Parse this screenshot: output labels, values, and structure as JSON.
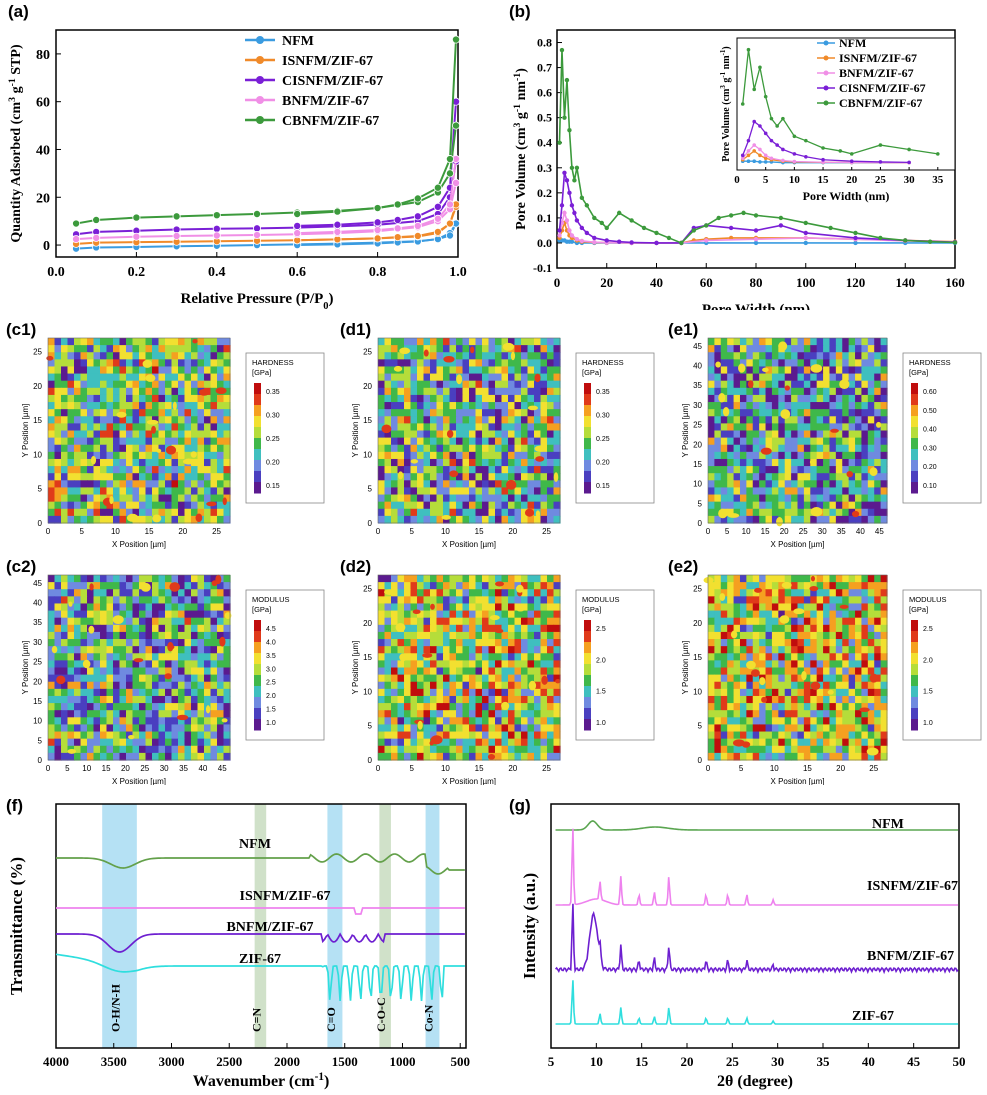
{
  "colors": {
    "NFM": "#3a9be0",
    "ISNFM": "#f08a2a",
    "CISNFM": "#7a1fd6",
    "BNFM": "#f08fe6",
    "CBNFM": "#3c9a3c",
    "ZIF": "#2fdede",
    "FTIR_NFM": "#63a04a",
    "FTIR_IS": "#ee82ee",
    "FTIR_BN": "#6d1fd0",
    "band_blue": "#a8dcf2",
    "band_green": "#c8dcc0"
  },
  "labels": {
    "a": "(a)",
    "b": "(b)",
    "c1": "(c1)",
    "d1": "(d1)",
    "e1": "(e1)",
    "c2": "(c2)",
    "d2": "(d2)",
    "e2": "(e2)",
    "f": "(f)",
    "g": "(g)"
  },
  "maps": {
    "c1": {
      "colorbar_title": [
        "HARDNESS",
        "[GPa]"
      ],
      "ticks": [
        "0.35",
        "0.30",
        "0.25",
        "0.20",
        "0.15"
      ],
      "xlabel": "X Position [µm]",
      "ylabel": "Y Position [µm]",
      "xticks": [
        "0",
        "5",
        "10",
        "15",
        "20",
        "25"
      ],
      "yticks": [
        "0",
        "5",
        "10",
        "15",
        "20",
        "25"
      ]
    },
    "d1": {
      "colorbar_title": [
        "HARDNESS",
        "[GPa]"
      ],
      "ticks": [
        "0.35",
        "0.30",
        "0.25",
        "0.20",
        "0.15"
      ],
      "xlabel": "X Position [µm]",
      "ylabel": "Y Position [µm]",
      "xticks": [
        "0",
        "5",
        "10",
        "15",
        "20",
        "25"
      ],
      "yticks": [
        "0",
        "5",
        "10",
        "15",
        "20",
        "25"
      ]
    },
    "e1": {
      "colorbar_title": [
        "HARDNESS",
        "[GPa]"
      ],
      "ticks": [
        "0.60",
        "0.50",
        "0.40",
        "0.30",
        "0.20",
        "0.10"
      ],
      "xlabel": "X Position [µm]",
      "ylabel": "Y Position [µm]",
      "xticks": [
        "0",
        "5",
        "10",
        "15",
        "20",
        "25",
        "30",
        "35",
        "40",
        "45"
      ],
      "yticks": [
        "0",
        "5",
        "10",
        "15",
        "20",
        "25",
        "30",
        "35",
        "40",
        "45"
      ]
    },
    "c2": {
      "colorbar_title": [
        "MODULUS",
        "[GPa]"
      ],
      "ticks": [
        "4.5",
        "4.0",
        "3.5",
        "3.0",
        "2.5",
        "2.0",
        "1.5",
        "1.0"
      ],
      "xlabel": "X Position [µm]",
      "ylabel": "Y Position [µm]",
      "xticks": [
        "0",
        "5",
        "10",
        "15",
        "20",
        "25",
        "30",
        "35",
        "40",
        "45"
      ],
      "yticks": [
        "0",
        "5",
        "10",
        "15",
        "20",
        "25",
        "30",
        "35",
        "40",
        "45"
      ]
    },
    "d2": {
      "colorbar_title": [
        "MODULUS",
        "[GPa]"
      ],
      "ticks": [
        "2.5",
        "2.0",
        "1.5",
        "1.0"
      ],
      "xlabel": "X Position [µm]",
      "ylabel": "Y Position [µm]",
      "xticks": [
        "0",
        "5",
        "10",
        "15",
        "20",
        "25"
      ],
      "yticks": [
        "0",
        "5",
        "10",
        "15",
        "20",
        "25"
      ]
    },
    "e2": {
      "colorbar_title": [
        "MODULUS",
        "[GPa]"
      ],
      "ticks": [
        "2.5",
        "2.0",
        "1.5",
        "1.0"
      ],
      "xlabel": "X Position [µm]",
      "ylabel": "Y Position [µm]",
      "xticks": [
        "0",
        "5",
        "10",
        "15",
        "20",
        "25"
      ],
      "yticks": [
        "0",
        "5",
        "10",
        "15",
        "20",
        "25"
      ]
    }
  },
  "chart_data": [
    {
      "id": "a",
      "type": "line",
      "xlabel": "Relative Pressure (P/P0)",
      "ylabel": "Quantity Adsorbed (cm3 g-1 STP)",
      "xlim": [
        0,
        1
      ],
      "ylim": [
        -5,
        90
      ],
      "xticks": [
        "0.0",
        "0.2",
        "0.4",
        "0.6",
        "0.8",
        "1.0"
      ],
      "yticks": [
        "0",
        "20",
        "40",
        "60",
        "80"
      ],
      "legend": "top-center",
      "series": [
        {
          "name": "NFM",
          "color": "#3a9be0",
          "x": [
            0.05,
            0.1,
            0.2,
            0.3,
            0.4,
            0.5,
            0.6,
            0.7,
            0.8,
            0.9,
            0.95,
            0.98,
            0.995
          ],
          "ads": [
            -1.5,
            -1,
            -0.8,
            -0.5,
            -0.3,
            0,
            0.3,
            0.6,
            1,
            1.6,
            2.5,
            5,
            9
          ],
          "des": [
            0,
            0.3,
            0.7,
            1.1,
            1.5,
            2.5,
            4,
            9
          ]
        },
        {
          "name": "ISNFM/ZIF-67",
          "color": "#f08a2a",
          "x": [
            0.05,
            0.1,
            0.2,
            0.3,
            0.4,
            0.5,
            0.6,
            0.7,
            0.8,
            0.9,
            0.95,
            0.98,
            0.995
          ],
          "ads": [
            0.5,
            1,
            1.2,
            1.4,
            1.6,
            1.8,
            2,
            2.4,
            2.8,
            3.6,
            5,
            9,
            16
          ],
          "des": [
            2,
            2.4,
            2.8,
            3.3,
            3.8,
            5.5,
            9,
            17
          ]
        },
        {
          "name": "CISNFM/ZIF-67",
          "color": "#7a1fd6",
          "x": [
            0.05,
            0.1,
            0.2,
            0.3,
            0.4,
            0.5,
            0.6,
            0.7,
            0.8,
            0.9,
            0.95,
            0.98,
            0.995
          ],
          "ads": [
            4.5,
            5.5,
            6,
            6.5,
            6.8,
            7,
            7.3,
            7.8,
            8.5,
            10,
            13,
            20,
            35
          ],
          "des": [
            8,
            8.5,
            9.5,
            10.5,
            12,
            16,
            24,
            60
          ]
        },
        {
          "name": "BNFM/ZIF-67",
          "color": "#f08fe6",
          "x": [
            0.05,
            0.1,
            0.2,
            0.3,
            0.4,
            0.5,
            0.6,
            0.7,
            0.8,
            0.9,
            0.95,
            0.98,
            0.995
          ],
          "ads": [
            2.5,
            3,
            3.5,
            3.8,
            4,
            4.2,
            4.5,
            5,
            5.8,
            7.5,
            10,
            15,
            26
          ],
          "des": [
            5,
            5.5,
            6.3,
            7,
            8,
            11,
            17,
            36
          ]
        },
        {
          "name": "CBNFM/ZIF-67",
          "color": "#3c9a3c",
          "x": [
            0.05,
            0.1,
            0.2,
            0.3,
            0.4,
            0.5,
            0.6,
            0.7,
            0.8,
            0.9,
            0.95,
            0.98,
            0.995
          ],
          "ads": [
            9,
            10.5,
            11.5,
            12,
            12.5,
            13,
            13.6,
            14.3,
            15.5,
            18,
            22,
            30,
            50
          ],
          "des": [
            13,
            14,
            15.5,
            17,
            19.5,
            24,
            36,
            86
          ]
        }
      ]
    },
    {
      "id": "b",
      "type": "line",
      "xlabel": "Pore Width (nm)",
      "ylabel": "Pore Volume (cm3 g-1 nm-1)",
      "xlim": [
        0,
        160
      ],
      "ylim": [
        -0.1,
        0.85
      ],
      "xticks": [
        "0",
        "20",
        "40",
        "60",
        "80",
        "100",
        "120",
        "140",
        "160"
      ],
      "yticks": [
        "-0.1",
        "0.0",
        "0.1",
        "0.2",
        "0.3",
        "0.4",
        "0.5",
        "0.6",
        "0.7",
        "0.8"
      ],
      "legend": "inset",
      "series": [
        {
          "name": "NFM",
          "color": "#3a9be0",
          "x": [
            1,
            2,
            3,
            4,
            5,
            6,
            8,
            10,
            15,
            20,
            30,
            40,
            50,
            60,
            80,
            100,
            120,
            140,
            160
          ],
          "y": [
            0.01,
            0.01,
            0.01,
            0.005,
            0.005,
            0.005,
            0,
            0,
            0,
            0,
            0,
            0,
            0,
            0,
            0,
            0,
            0,
            0,
            0
          ]
        },
        {
          "name": "ISNFM/ZIF-67",
          "color": "#f08a2a",
          "x": [
            1,
            2,
            3,
            4,
            5,
            6,
            8,
            10,
            15,
            20,
            30,
            40,
            50,
            55,
            60,
            70,
            80,
            100,
            120,
            140,
            160
          ],
          "y": [
            0.02,
            0.05,
            0.08,
            0.05,
            0.03,
            0.02,
            0.01,
            0.005,
            0.002,
            0.001,
            0,
            0,
            0,
            0.01,
            0.015,
            0.02,
            0.02,
            0.02,
            0.015,
            0.01,
            0.005
          ]
        },
        {
          "name": "BNFM/ZIF-67",
          "color": "#f08fe6",
          "x": [
            1,
            2,
            3,
            4,
            5,
            6,
            8,
            10,
            15,
            20,
            30,
            40,
            50,
            60,
            80,
            100,
            120,
            140,
            160
          ],
          "y": [
            0.03,
            0.08,
            0.12,
            0.09,
            0.05,
            0.03,
            0.015,
            0.008,
            0.003,
            0.001,
            0,
            0,
            0,
            0.01,
            0.015,
            0.02,
            0.015,
            0.008,
            0.004
          ]
        },
        {
          "name": "CISNFM/ZIF-67",
          "color": "#7a1fd6",
          "x": [
            1,
            2,
            3,
            4,
            5,
            6,
            7,
            8,
            10,
            12,
            15,
            20,
            25,
            30,
            40,
            50,
            55,
            60,
            70,
            80,
            90,
            100,
            120,
            140,
            160
          ],
          "y": [
            0.05,
            0.15,
            0.28,
            0.25,
            0.2,
            0.15,
            0.12,
            0.09,
            0.06,
            0.04,
            0.02,
            0.01,
            0.005,
            0.002,
            0,
            0,
            0.06,
            0.07,
            0.06,
            0.05,
            0.07,
            0.04,
            0.02,
            0.01,
            0.003
          ]
        },
        {
          "name": "CBNFM/ZIF-67",
          "color": "#3c9a3c",
          "x": [
            1,
            2,
            3,
            4,
            5,
            6,
            7,
            8,
            10,
            12,
            15,
            18,
            20,
            25,
            30,
            35,
            40,
            45,
            50,
            55,
            60,
            65,
            70,
            75,
            80,
            90,
            100,
            110,
            120,
            130,
            140,
            150,
            160
          ],
          "y": [
            0.4,
            0.77,
            0.5,
            0.65,
            0.45,
            0.3,
            0.25,
            0.3,
            0.18,
            0.15,
            0.1,
            0.08,
            0.06,
            0.12,
            0.09,
            0.06,
            0.04,
            0.02,
            0,
            0.05,
            0.07,
            0.1,
            0.11,
            0.12,
            0.11,
            0.1,
            0.08,
            0.06,
            0.04,
            0.02,
            0.01,
            0.005,
            0.002
          ]
        }
      ],
      "inset": {
        "xlabel": "Pore Width (nm)",
        "ylabel": "Pore Volume (cm3 g-1 nm-1)",
        "xticks": [
          "0",
          "5",
          "10",
          "15",
          "20",
          "25",
          "30",
          "35"
        ],
        "xlim": [
          0,
          38
        ],
        "ylim": [
          -0.05,
          0.85
        ]
      }
    },
    {
      "id": "f",
      "type": "line",
      "xlabel": "Wavenumber (cm-1)",
      "ylabel": "Transmittance (%)",
      "xlim": [
        4000,
        450
      ],
      "xticks": [
        "4000",
        "3500",
        "3000",
        "2500",
        "2000",
        "1500",
        "1000",
        "500"
      ],
      "series": [
        {
          "name": "NFM",
          "color": "#63a04a",
          "offset": 4.0
        },
        {
          "name": "ISNFM/ZIF-67",
          "color": "#ee82ee",
          "offset": 2.6
        },
        {
          "name": "BNFM/ZIF-67",
          "color": "#6d1fd0",
          "offset": 1.8
        },
        {
          "name": "ZIF-67",
          "color": "#2fdede",
          "offset": 0.6
        }
      ],
      "bands": [
        {
          "label": "O-H/N-H",
          "from": 3600,
          "to": 3300
        },
        {
          "label": "C=N",
          "from": 2280,
          "to": 2180
        },
        {
          "label": "C=O",
          "from": 1650,
          "to": 1520
        },
        {
          "label": "C-O-C",
          "from": 1200,
          "to": 1100
        },
        {
          "label": "Co-N",
          "from": 800,
          "to": 680
        }
      ]
    },
    {
      "id": "g",
      "type": "line",
      "xlabel": "2θ (degree)",
      "ylabel": "Intensity (a.u.)",
      "xlim": [
        5,
        50
      ],
      "xticks": [
        "5",
        "10",
        "15",
        "20",
        "25",
        "30",
        "35",
        "40",
        "45",
        "50"
      ],
      "series": [
        {
          "name": "NFM",
          "color": "#5aa550"
        },
        {
          "name": "ISNFM/ZIF-67",
          "color": "#ee82ee"
        },
        {
          "name": "BNFM/ZIF-67",
          "color": "#6d1fd0"
        },
        {
          "name": "ZIF-67",
          "color": "#2fdede"
        }
      ]
    }
  ]
}
